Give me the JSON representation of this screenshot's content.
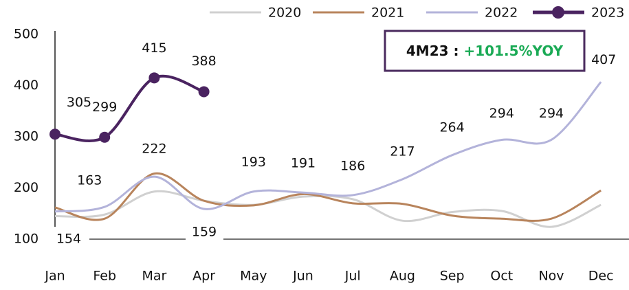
{
  "chart_data": {
    "type": "line",
    "categories": [
      "Jan",
      "Feb",
      "Mar",
      "Apr",
      "May",
      "Jun",
      "Jul",
      "Aug",
      "Sep",
      "Oct",
      "Nov",
      "Dec"
    ],
    "series": [
      {
        "name": "2020",
        "color": "#d0d0d0",
        "values": [
          145,
          148,
          193,
          175,
          167,
          183,
          178,
          136,
          153,
          155,
          124,
          167
        ]
      },
      {
        "name": "2021",
        "color": "#b8845c",
        "values": [
          162,
          140,
          228,
          175,
          166,
          188,
          170,
          169,
          146,
          140,
          140,
          195
        ]
      },
      {
        "name": "2022",
        "color": "#b3b3da",
        "values": [
          154,
          163,
          222,
          159,
          193,
          191,
          186,
          217,
          264,
          294,
          294,
          407
        ]
      },
      {
        "name": "2023",
        "color": "#4a2360",
        "values": [
          305,
          299,
          415,
          388,
          null,
          null,
          null,
          null,
          null,
          null,
          null,
          null
        ]
      }
    ],
    "ylim": [
      100,
      500
    ],
    "yticks": [
      100,
      200,
      300,
      400,
      500
    ],
    "annotation": {
      "prefix": "4M23 :",
      "highlight": "+101.5%YOY",
      "highlight_color": "#1aaa55"
    }
  }
}
